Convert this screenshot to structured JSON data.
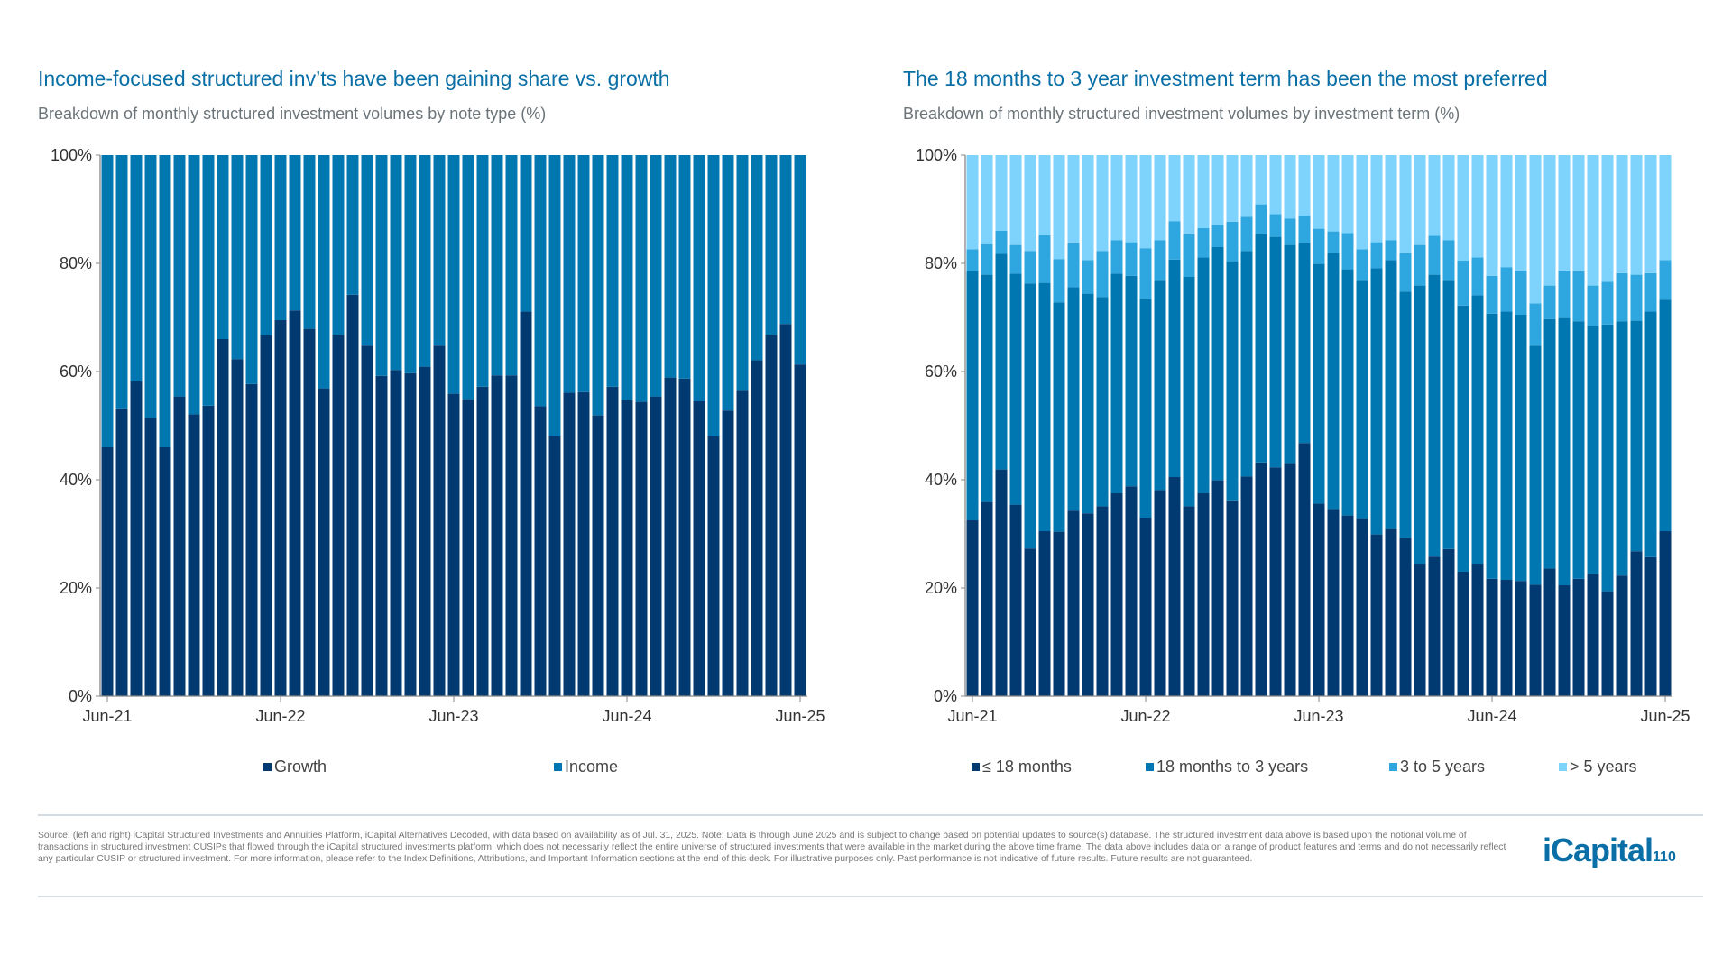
{
  "left": {
    "title": "Income-focused structured inv’ts have been gaining share vs. growth",
    "subtitle": "Breakdown of monthly structured investment volumes by note type (%)"
  },
  "right": {
    "title": "The 18 months to 3 year investment term has been the most preferred",
    "subtitle": "Breakdown of monthly structured investment volumes by investment term (%)"
  },
  "chart_data": [
    {
      "type": "bar",
      "stacked": true,
      "title": "Income-focused structured inv’ts have been gaining share vs. growth",
      "subtitle": "Breakdown of monthly structured investment volumes by note type (%)",
      "ylim": [
        0,
        100
      ],
      "y_tick_labels": [
        "0%",
        "20%",
        "40%",
        "60%",
        "80%",
        "100%"
      ],
      "x_tick_labels": [
        "Jun-21",
        "Jun-22",
        "Jun-23",
        "Jun-24",
        "Jun-25"
      ],
      "grid": false,
      "legend": "bottom",
      "series": [
        {
          "name": "Growth",
          "color": "#003a70",
          "values": [
            46.0,
            53.2,
            58.2,
            51.4,
            46.0,
            55.4,
            52.1,
            53.7,
            66.0,
            62.3,
            57.7,
            66.7,
            69.5,
            71.3,
            67.9,
            56.9,
            66.8,
            74.2,
            64.8,
            59.2,
            60.3,
            59.7,
            60.9,
            64.8,
            55.9,
            54.9,
            57.2,
            59.3,
            59.3,
            71.1,
            53.6,
            48.0,
            56.1,
            56.2,
            51.9,
            57.2,
            54.7,
            54.4,
            55.4,
            58.9,
            58.7,
            54.5,
            48.0,
            52.8,
            56.6,
            62.1,
            66.8,
            68.8,
            61.3
          ]
        },
        {
          "name": "Income",
          "color": "#0077b0",
          "values": [
            54.0,
            46.8,
            41.8,
            48.6,
            54.0,
            44.6,
            47.9,
            46.3,
            34.0,
            37.7,
            42.3,
            33.3,
            30.5,
            28.7,
            32.1,
            43.1,
            33.2,
            25.8,
            35.2,
            40.8,
            39.7,
            40.3,
            39.1,
            35.2,
            44.1,
            45.1,
            42.8,
            40.7,
            40.7,
            28.9,
            46.4,
            52.0,
            43.9,
            43.8,
            48.1,
            42.8,
            45.3,
            45.6,
            44.6,
            41.1,
            41.3,
            45.5,
            52.0,
            47.2,
            43.4,
            37.9,
            33.2,
            31.2,
            38.7
          ]
        }
      ]
    },
    {
      "type": "bar",
      "stacked": true,
      "title": "The 18 months to 3 year investment term has been the most preferred",
      "subtitle": "Breakdown of monthly structured investment volumes by investment term (%)",
      "ylim": [
        0,
        100
      ],
      "y_tick_labels": [
        "0%",
        "20%",
        "40%",
        "60%",
        "80%",
        "100%"
      ],
      "x_tick_labels": [
        "Jun-21",
        "Jun-22",
        "Jun-23",
        "Jun-24",
        "Jun-25"
      ],
      "grid": false,
      "legend": "bottom",
      "series": [
        {
          "name": "≤ 18 months",
          "color": "#003a70",
          "values": [
            32.5,
            35.9,
            41.9,
            35.4,
            27.3,
            30.5,
            30.4,
            34.3,
            33.8,
            35.1,
            37.5,
            38.8,
            33.0,
            38.1,
            40.5,
            35.1,
            37.5,
            39.9,
            36.2,
            40.6,
            43.2,
            42.3,
            43.1,
            46.8,
            35.6,
            34.6,
            33.4,
            32.9,
            29.9,
            30.9,
            29.3,
            24.5,
            25.8,
            27.2,
            23.0,
            24.5,
            21.7,
            21.5,
            21.3,
            20.6,
            23.6,
            20.5,
            21.7,
            22.6,
            19.4,
            22.3,
            26.8,
            25.7,
            30.5
          ]
        },
        {
          "name": "18 months to 3 years",
          "color": "#0077b0",
          "values": [
            46.0,
            42.0,
            39.9,
            42.7,
            49.0,
            45.9,
            42.4,
            41.3,
            40.6,
            38.7,
            40.6,
            38.9,
            40.4,
            38.7,
            40.2,
            42.4,
            43.6,
            43.1,
            44.2,
            41.7,
            42.2,
            42.6,
            40.3,
            36.9,
            44.3,
            47.3,
            45.5,
            43.9,
            49.2,
            49.7,
            45.5,
            51.4,
            52.1,
            49.6,
            49.2,
            49.6,
            49.0,
            49.6,
            49.2,
            44.2,
            46.1,
            49.4,
            47.6,
            45.9,
            49.3,
            47.0,
            42.6,
            45.4,
            42.8
          ]
        },
        {
          "name": "3 to 5 years",
          "color": "#2ea6e0",
          "values": [
            4.1,
            5.6,
            4.2,
            5.3,
            6.0,
            8.8,
            8.0,
            8.1,
            6.2,
            8.5,
            6.2,
            6.2,
            9.4,
            7.5,
            7.1,
            7.9,
            5.4,
            4.1,
            7.3,
            6.3,
            5.5,
            4.2,
            4.9,
            5.1,
            6.5,
            4.0,
            6.7,
            5.8,
            4.8,
            3.7,
            7.1,
            7.5,
            7.2,
            7.5,
            8.3,
            7.0,
            7.0,
            8.2,
            8.2,
            7.8,
            6.2,
            8.8,
            9.2,
            7.4,
            7.9,
            8.9,
            8.5,
            7.1,
            7.3
          ]
        },
        {
          "name": "> 5 years",
          "color": "#7dd3fb",
          "values": [
            17.4,
            16.5,
            14.0,
            16.6,
            17.7,
            14.8,
            19.2,
            16.3,
            19.4,
            17.7,
            15.7,
            16.1,
            17.2,
            15.7,
            12.2,
            14.6,
            13.5,
            12.9,
            12.3,
            11.4,
            9.1,
            10.9,
            11.7,
            11.2,
            13.6,
            14.1,
            14.4,
            17.4,
            16.1,
            15.7,
            18.1,
            16.6,
            14.9,
            15.7,
            19.5,
            18.9,
            22.3,
            20.7,
            21.3,
            27.4,
            24.1,
            21.3,
            21.5,
            24.1,
            23.4,
            21.8,
            22.1,
            21.8,
            19.4
          ]
        }
      ]
    }
  ],
  "footer": {
    "source": "Source: (left and right) iCapital Structured Investments and Annuities Platform, iCapital Alternatives Decoded, with data based on availability as of Jul. 31, 2025. Note: Data is through June 2025 and is subject to change based on potential updates to source(s) database. The structured investment data above is based upon the notional volume of transactions in structured investment CUSIPs that flowed through the iCapital structured investments platform, which does not necessarily reflect the entire universe of structured investments that were available in the market during the above time frame. The data above includes data on a range of product features and terms and do not necessarily reflect any particular CUSIP or structured investment. For more information, please refer to the Index Definitions, Attributions, and Important Information sections at the end of this deck. For illustrative purposes only. Past performance is not indicative of future results. Future results are not guaranteed.",
    "logo": "iCapital",
    "page_number": "110"
  }
}
